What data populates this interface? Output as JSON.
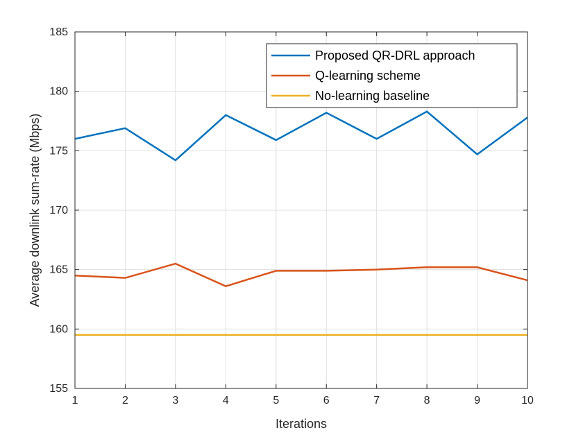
{
  "chart_data": {
    "type": "line",
    "title": "",
    "xlabel": "Iterations",
    "ylabel": "Average downlink sum-rate (Mbps)",
    "xlim": [
      1,
      10
    ],
    "ylim": [
      155,
      185
    ],
    "x": [
      1,
      2,
      3,
      4,
      5,
      6,
      7,
      8,
      9,
      10
    ],
    "xticks": [
      1,
      2,
      3,
      4,
      5,
      6,
      7,
      8,
      9,
      10
    ],
    "yticks": [
      155,
      160,
      165,
      170,
      175,
      180,
      185
    ],
    "grid": true,
    "legend_position": "top-right",
    "series": [
      {
        "name": "Proposed QR-DRL approach",
        "color": "#0072BD",
        "values": [
          176.0,
          176.9,
          174.2,
          178.0,
          175.9,
          178.2,
          176.0,
          178.3,
          174.7,
          177.8
        ]
      },
      {
        "name": "Q-learning scheme",
        "color": "#D95319",
        "values": [
          164.5,
          164.3,
          165.5,
          163.6,
          164.9,
          164.9,
          165.0,
          165.2,
          165.2,
          164.1
        ]
      },
      {
        "name": "No-learning baseline",
        "color": "#EDB120",
        "values": [
          159.5,
          159.5,
          159.5,
          159.5,
          159.5,
          159.5,
          159.5,
          159.5,
          159.5,
          159.5
        ]
      }
    ]
  }
}
